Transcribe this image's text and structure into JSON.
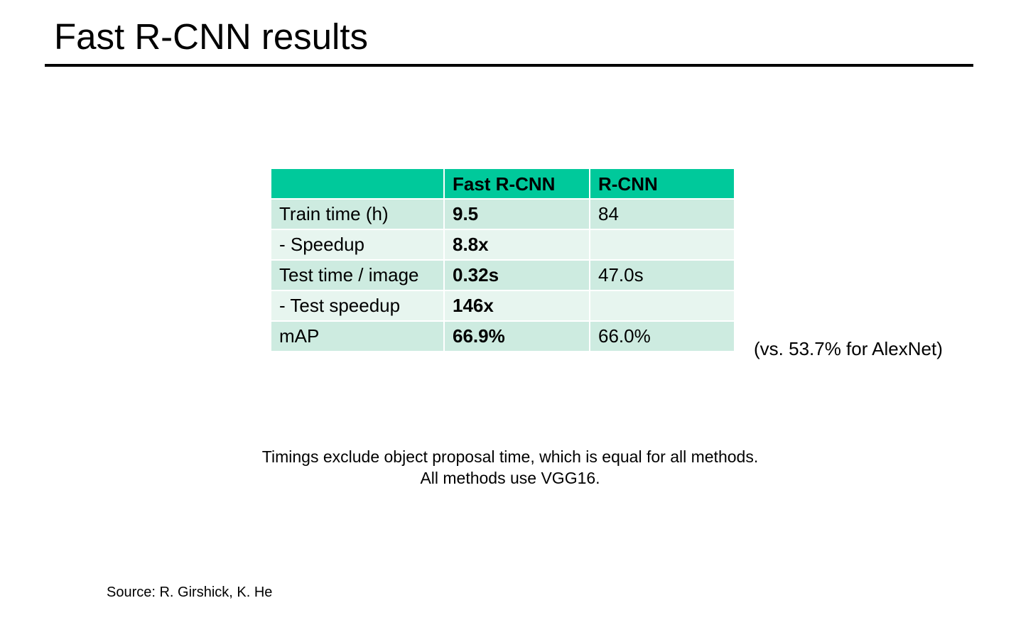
{
  "title": "Fast R-CNN results",
  "table": {
    "headers": [
      "",
      "Fast R-CNN",
      "R-CNN"
    ],
    "rows": [
      {
        "label": "Train time (h)",
        "fast": "9.5",
        "rcnn": "84"
      },
      {
        "label": "- Speedup",
        "fast": "8.8x",
        "rcnn": ""
      },
      {
        "label": "Test time / image",
        "fast": "0.32s",
        "rcnn": "47.0s"
      },
      {
        "label": "- Test speedup",
        "fast": "146x",
        "rcnn": ""
      },
      {
        "label": "mAP",
        "fast": "66.9%",
        "rcnn": "66.0%"
      }
    ]
  },
  "alexnet_note": "(vs. 53.7% for AlexNet)",
  "footnote": {
    "line1": "Timings exclude object proposal time, which is equal for all methods.",
    "line2": "All methods use VGG16."
  },
  "source": "Source: R. Girshick, K. He",
  "colors": {
    "header_bg": "#00c99b",
    "row_dark": "#cdebe0",
    "row_light": "#e7f5ef"
  }
}
